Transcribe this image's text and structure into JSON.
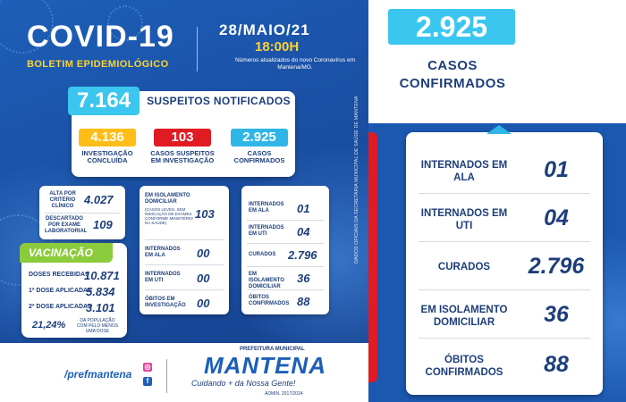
{
  "header": {
    "title": "COVID-19",
    "subtitle": "BOLETIM EPIDEMIOLÓGICO",
    "date": "28/MAIO/21",
    "time": "18:00H",
    "note": "Números atualizados do novo Coronavírus em Mantena/MG."
  },
  "suspeitos": {
    "value": "7.164",
    "label": "SUSPEITOS NOTIFICADOS",
    "items": [
      {
        "value": "4.136",
        "label": "INVESTIGAÇÃO CONCLUÍDA",
        "color": "#ffbe17"
      },
      {
        "value": "103",
        "label": "CASOS SUSPEITOS EM INVESTIGAÇÃO",
        "color": "#e01b23"
      },
      {
        "value": "2.925",
        "label": "CASOS CONFIRMADOS",
        "color": "#2fb6e6"
      }
    ]
  },
  "concluida": {
    "rows": [
      {
        "label": "ALTA POR CRITÉRIO CLÍNICO",
        "value": "4.027"
      },
      {
        "label": "DESCARTADO POR EXAME LABORATORIAL",
        "value": "109"
      }
    ]
  },
  "investigacao": {
    "rows": [
      {
        "label": "EM ISOLAMENTO DOMICILIAR",
        "sublabel": "(CASOS LEVES, SEM INDICAÇÃO DE EXAMES CONFORME MINISTÉRIO DA SAÚDE)",
        "value": "103"
      },
      {
        "label": "INTERNADOS EM ALA",
        "value": "00"
      },
      {
        "label": "INTERNADOS EM UTI",
        "value": "00"
      },
      {
        "label": "ÓBITOS EM INVESTIGAÇÃO",
        "value": "00"
      }
    ]
  },
  "confirmados": {
    "rows": [
      {
        "label": "INTERNADOS EM ALA",
        "value": "01"
      },
      {
        "label": "INTERNADOS EM UTI",
        "value": "04"
      },
      {
        "label": "CURADOS",
        "value": "2.796"
      },
      {
        "label": "EM ISOLAMENTO DOMICILIAR",
        "value": "36"
      },
      {
        "label": "ÓBITOS CONFIRMADOS",
        "value": "88"
      }
    ]
  },
  "vacinacao": {
    "title": "VACINAÇÃO",
    "rows": [
      {
        "label": "DOSES RECEBIDAS",
        "value": "10.871"
      },
      {
        "label": "1ª DOSE APLICADAS",
        "value": "5.834"
      },
      {
        "label": "2ª DOSE APLICADAS",
        "value": "3.101"
      }
    ],
    "percent": "21,24%",
    "percent_label": "DA POPULAÇÃO COM PELO MENOS UMA DOSE"
  },
  "side_text": "DADOS OFICIAIS DA SECRETARIA MUNICIPAL DE SAÚDE DE MANTENA",
  "footer": {
    "handle": "/prefmantena",
    "prefeitura": "PREFEITURA MUNICIPAL",
    "city": "MANTENA",
    "slogan": "Cuidando + da Nossa Gente!",
    "admin": "ADMIN. 2017/2024"
  },
  "right_panel": {
    "value": "2.925",
    "label": "CASOS CONFIRMADOS",
    "rows": [
      {
        "label": "INTERNADOS EM ALA",
        "value": "01"
      },
      {
        "label": "INTERNADOS EM UTI",
        "value": "04"
      },
      {
        "label": "CURADOS",
        "value": "2.796"
      },
      {
        "label": "EM ISOLAMENTO DOMICILIAR",
        "value": "36"
      },
      {
        "label": "ÓBITOS CONFIRMADOS",
        "value": "88"
      }
    ]
  },
  "colors": {
    "primary_blue": "#1d5fb8",
    "navy": "#1d3e7a",
    "cyan": "#3ac6ef",
    "yellow": "#ffbe17",
    "red": "#e01b23",
    "green": "#8ccb3b"
  }
}
